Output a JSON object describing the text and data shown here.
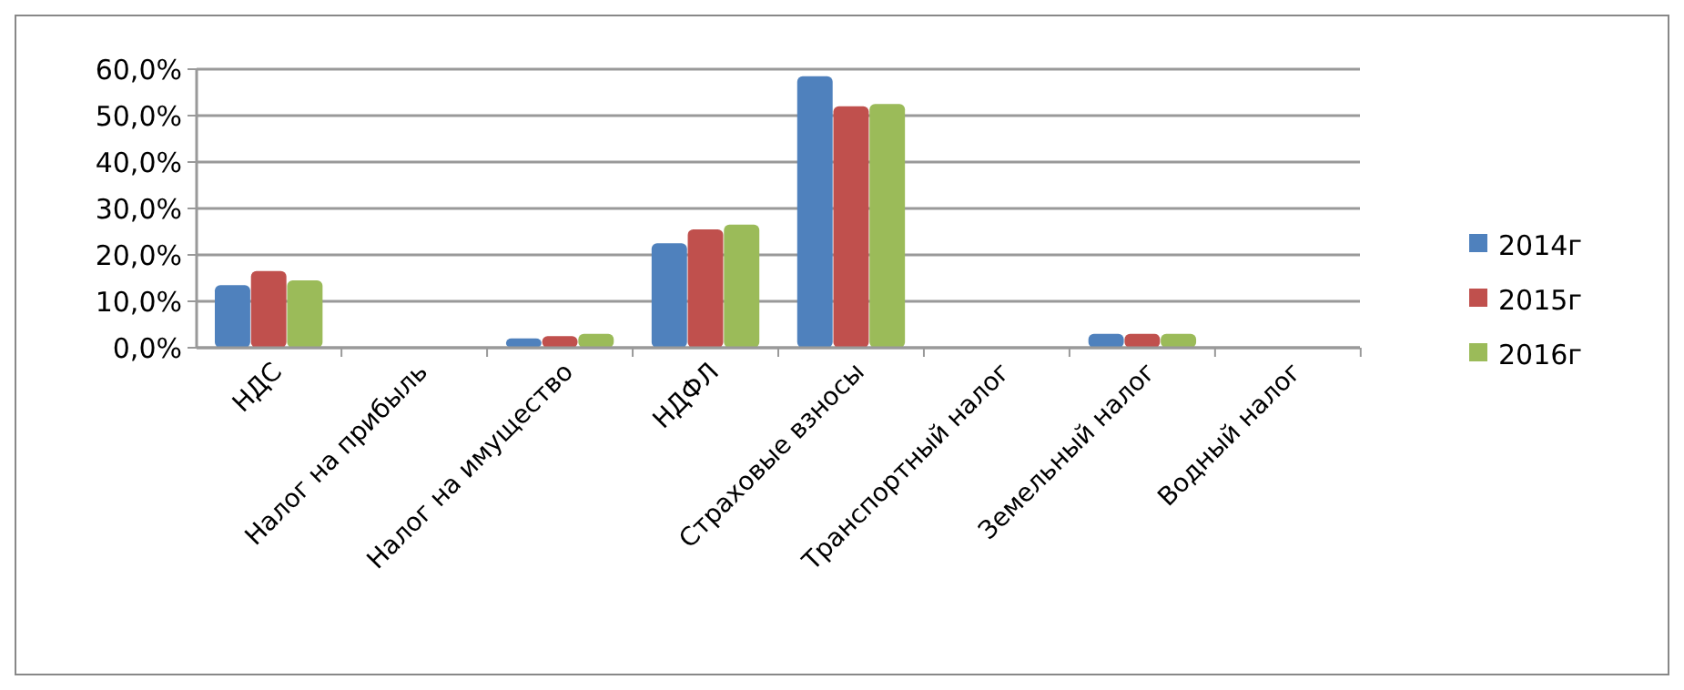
{
  "chart_data": {
    "type": "bar",
    "categories": [
      "НДС",
      "Налог на прибыль",
      "Налог на имущество",
      "НДФЛ",
      "Страховые взносы",
      "Транспортный налог",
      "Земельный налог",
      "Водный налог"
    ],
    "series": [
      {
        "name": "2014г",
        "color": "#4f81bd",
        "values": [
          13.5,
          0.2,
          2,
          22.5,
          58.5,
          0.2,
          3,
          0.2
        ]
      },
      {
        "name": "2015г",
        "color": "#c0504d",
        "values": [
          16.5,
          0.2,
          2.5,
          25.5,
          52,
          0.2,
          3,
          0.2
        ]
      },
      {
        "name": "2016г",
        "color": "#9bbb59",
        "values": [
          14.5,
          0.2,
          3,
          26.5,
          52.5,
          0.2,
          3,
          0.2
        ]
      }
    ],
    "ylim": [
      0,
      60
    ],
    "yticks": [
      {
        "value": 0,
        "label": "0,0%"
      },
      {
        "value": 10,
        "label": "10,0%"
      },
      {
        "value": 20,
        "label": "20,0%"
      },
      {
        "value": 30,
        "label": "30,0%"
      },
      {
        "value": 40,
        "label": "40,0%"
      },
      {
        "value": 50,
        "label": "50,0%"
      },
      {
        "value": 60,
        "label": "60,0%"
      }
    ],
    "grid": "y",
    "legend": "right"
  }
}
